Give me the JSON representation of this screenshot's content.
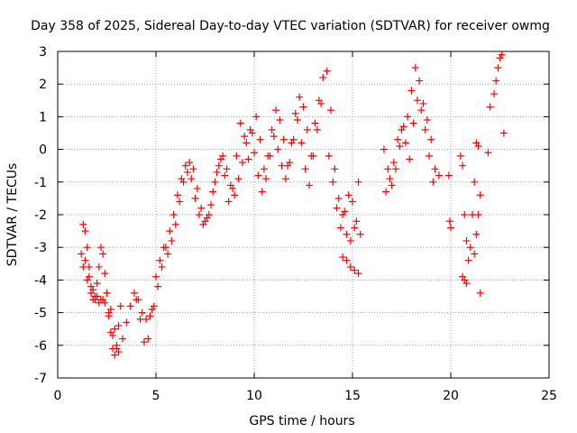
{
  "chart_data": {
    "type": "scatter",
    "title": "Day 358 of 2025, Sidereal Day-to-day VTEC variation (SDTVAR) for receiver owmg",
    "xlabel": "GPS time / hours",
    "ylabel": "SDTVAR / TECUs",
    "xlim": [
      0,
      25
    ],
    "ylim": [
      -7,
      3
    ],
    "xticks": [
      0,
      5,
      10,
      15,
      20,
      25
    ],
    "yticks": [
      -7,
      -6,
      -5,
      -4,
      -3,
      -2,
      -1,
      0,
      1,
      2,
      3
    ],
    "grid": true,
    "marker": "+",
    "marker_color": "#ff0000",
    "grid_color": "#a0a0a0",
    "series": [
      {
        "name": "SDTVAR",
        "x": [
          1.2,
          1.3,
          1.4,
          1.5,
          1.6,
          1.7,
          1.8,
          1.9,
          2.0,
          2.1,
          2.2,
          2.3,
          2.4,
          2.5,
          2.6,
          2.7,
          2.8,
          2.9,
          3.0,
          3.1,
          3.2,
          1.3,
          1.5,
          1.7,
          1.9,
          2.1,
          2.3,
          2.5,
          2.7,
          2.9,
          3.1,
          1.4,
          1.6,
          1.8,
          2.0,
          2.2,
          2.4,
          2.6,
          2.8,
          3.0,
          3.3,
          3.5,
          3.7,
          3.9,
          4.1,
          4.3,
          4.5,
          4.7,
          4.9,
          5.1,
          5.3,
          5.5,
          5.7,
          5.9,
          6.1,
          6.3,
          6.5,
          6.7,
          6.9,
          7.1,
          7.3,
          7.5,
          7.7,
          7.9,
          8.1,
          8.3,
          8.5,
          8.7,
          8.9,
          9.1,
          9.3,
          9.5,
          9.7,
          9.9,
          10.1,
          10.3,
          10.5,
          10.7,
          10.9,
          11.1,
          11.3,
          11.5,
          11.7,
          11.9,
          12.1,
          12.3,
          12.5,
          12.7,
          12.9,
          13.1,
          13.3,
          13.5,
          13.7,
          13.9,
          14.1,
          14.3,
          14.5,
          14.7,
          14.9,
          15.1,
          15.3,
          4.0,
          4.2,
          4.4,
          4.6,
          4.8,
          5.0,
          5.2,
          5.4,
          5.6,
          5.8,
          6.0,
          6.2,
          6.4,
          6.6,
          6.8,
          7.0,
          7.2,
          7.4,
          7.6,
          7.8,
          8.0,
          8.2,
          8.4,
          8.6,
          8.8,
          9.0,
          9.2,
          9.4,
          9.6,
          9.8,
          10.0,
          10.2,
          10.4,
          10.6,
          10.8,
          11.0,
          11.2,
          11.4,
          11.6,
          11.8,
          12.0,
          12.2,
          12.4,
          12.6,
          12.8,
          13.0,
          13.2,
          13.4,
          13.8,
          14.0,
          14.2,
          14.4,
          14.6,
          14.8,
          15.0,
          15.2,
          15.4,
          14.5,
          14.7,
          14.9,
          15.1,
          15.3,
          16.6,
          16.8,
          17.0,
          17.2,
          17.4,
          17.6,
          17.8,
          18.0,
          18.2,
          18.4,
          18.6,
          18.8,
          19.0,
          19.2,
          19.4,
          16.7,
          16.9,
          17.1,
          17.3,
          17.5,
          17.7,
          17.9,
          18.1,
          18.3,
          18.5,
          18.7,
          18.9,
          19.1,
          19.9,
          19.95,
          20.0,
          20.5,
          20.6,
          20.7,
          20.8,
          20.9,
          21.0,
          21.1,
          21.2,
          21.3,
          21.4,
          21.5,
          20.6,
          20.7,
          20.8,
          21.2,
          21.3,
          21.4,
          21.5,
          21.9,
          22.0,
          22.2,
          22.3,
          22.4,
          22.5,
          22.6,
          22.7
        ],
        "y": [
          -3.2,
          -2.3,
          -2.5,
          -3.0,
          -3.6,
          -4.2,
          -4.6,
          -4.5,
          -4.1,
          -3.6,
          -3.0,
          -3.2,
          -3.8,
          -4.4,
          -5.0,
          -5.6,
          -6.1,
          -6.3,
          -6.0,
          -5.4,
          -4.8,
          -3.6,
          -4.0,
          -4.4,
          -4.6,
          -4.7,
          -4.6,
          -4.4,
          -4.9,
          -5.5,
          -6.2,
          -3.4,
          -3.9,
          -4.3,
          -4.5,
          -4.6,
          -4.7,
          -5.1,
          -5.7,
          -6.1,
          -5.8,
          -5.3,
          -4.8,
          -4.4,
          -4.6,
          -5.0,
          -5.2,
          -5.1,
          -4.8,
          -4.2,
          -3.6,
          -3.0,
          -2.5,
          -2.0,
          -1.4,
          -0.9,
          -0.5,
          -0.4,
          -0.6,
          -1.2,
          -1.8,
          -2.2,
          -2.0,
          -1.3,
          -0.7,
          -0.3,
          -0.8,
          -1.6,
          -1.2,
          -0.2,
          0.8,
          0.4,
          -0.3,
          0.5,
          1.0,
          0.3,
          -0.6,
          -0.2,
          0.6,
          1.2,
          0.9,
          0.3,
          -0.5,
          0.2,
          1.1,
          1.6,
          1.3,
          0.6,
          -0.2,
          0.8,
          1.5,
          2.2,
          2.4,
          1.2,
          -0.6,
          -1.5,
          -2.0,
          -2.6,
          -2.8,
          -2.4,
          -1.0,
          -4.6,
          -5.2,
          -5.9,
          -5.8,
          -4.9,
          -3.9,
          -3.4,
          -3.0,
          -3.2,
          -2.8,
          -2.3,
          -1.6,
          -1.0,
          -0.7,
          -0.9,
          -1.5,
          -2.0,
          -2.3,
          -2.1,
          -1.7,
          -1.0,
          -0.5,
          -0.2,
          -0.6,
          -1.1,
          -1.4,
          -0.9,
          -0.4,
          0.2,
          0.6,
          -0.1,
          -0.8,
          -1.3,
          -0.9,
          -0.2,
          0.4,
          0.0,
          -0.5,
          -0.9,
          -0.4,
          0.3,
          0.9,
          0.2,
          -0.6,
          -1.1,
          -0.2,
          0.6,
          1.4,
          -0.2,
          -1.0,
          -1.8,
          -2.4,
          -1.9,
          -1.4,
          -1.6,
          -2.2,
          -2.6,
          -3.3,
          -3.4,
          -3.6,
          -3.7,
          -3.8,
          0.0,
          -0.6,
          -1.1,
          -0.6,
          0.1,
          0.7,
          1.0,
          1.8,
          2.5,
          2.1,
          1.4,
          0.9,
          0.3,
          -0.6,
          -0.8,
          -1.3,
          -0.9,
          -0.4,
          0.3,
          0.6,
          0.2,
          -0.3,
          0.8,
          1.5,
          1.2,
          0.6,
          -0.2,
          -1.0,
          -0.8,
          -2.2,
          -2.4,
          -0.2,
          -0.5,
          -2.0,
          -2.8,
          -3.4,
          -3.0,
          -2.0,
          -1.0,
          0.2,
          0.1,
          -4.4,
          -3.9,
          -4.0,
          -4.1,
          -3.2,
          -2.6,
          -2.0,
          -1.4,
          -0.1,
          1.3,
          1.7,
          2.1,
          2.5,
          2.8,
          2.9,
          0.5
        ]
      }
    ]
  }
}
